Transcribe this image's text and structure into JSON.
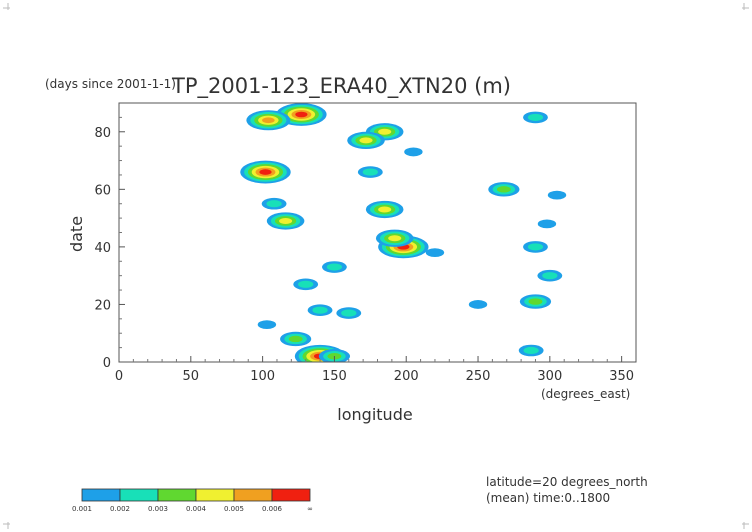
{
  "chart_data": {
    "type": "heatmap",
    "title": "TP_2001-123_ERA40_XTN20 (m)",
    "y_unit_note": "(days since 2001-1-1)",
    "xlabel": "longitude",
    "x_unit": "(degrees_east)",
    "ylabel": "date",
    "xlim": [
      0,
      360
    ],
    "ylim": [
      0,
      90
    ],
    "x_ticks": [
      0,
      50,
      100,
      150,
      200,
      250,
      300,
      350
    ],
    "y_ticks": [
      0,
      20,
      40,
      60,
      80
    ],
    "annotations": [
      "latitude=20 degrees_north",
      "(mean) time:0..1800"
    ],
    "colorbar": {
      "levels": [
        "0.001",
        "0.002",
        "0.003",
        "0.004",
        "0.005",
        "0.006",
        "∞"
      ],
      "colors": [
        "#1ea0e8",
        "#18e0b8",
        "#60d830",
        "#f0f030",
        "#f0a020",
        "#f02010"
      ]
    },
    "blobs": [
      {
        "x": 140,
        "y": 2,
        "peak": 6
      },
      {
        "x": 150,
        "y": 2,
        "peak": 3
      },
      {
        "x": 127,
        "y": 86,
        "peak": 6
      },
      {
        "x": 104,
        "y": 84,
        "peak": 5
      },
      {
        "x": 102,
        "y": 66,
        "peak": 6
      },
      {
        "x": 185,
        "y": 80,
        "peak": 4
      },
      {
        "x": 172,
        "y": 77,
        "peak": 4
      },
      {
        "x": 198,
        "y": 40,
        "peak": 6
      },
      {
        "x": 192,
        "y": 43,
        "peak": 4
      },
      {
        "x": 185,
        "y": 53,
        "peak": 4
      },
      {
        "x": 290,
        "y": 85,
        "peak": 2
      },
      {
        "x": 287,
        "y": 4,
        "peak": 2
      },
      {
        "x": 290,
        "y": 21,
        "peak": 3
      },
      {
        "x": 123,
        "y": 8,
        "peak": 3
      },
      {
        "x": 116,
        "y": 49,
        "peak": 4
      },
      {
        "x": 108,
        "y": 55,
        "peak": 2
      },
      {
        "x": 268,
        "y": 60,
        "peak": 3
      },
      {
        "x": 290,
        "y": 40,
        "peak": 2
      },
      {
        "x": 300,
        "y": 30,
        "peak": 2
      },
      {
        "x": 150,
        "y": 33,
        "peak": 2
      },
      {
        "x": 140,
        "y": 18,
        "peak": 2
      },
      {
        "x": 175,
        "y": 66,
        "peak": 2
      },
      {
        "x": 130,
        "y": 27,
        "peak": 2
      },
      {
        "x": 160,
        "y": 17,
        "peak": 2
      },
      {
        "x": 103,
        "y": 13,
        "peak": 1
      },
      {
        "x": 220,
        "y": 38,
        "peak": 1
      },
      {
        "x": 205,
        "y": 73,
        "peak": 1
      },
      {
        "x": 298,
        "y": 48,
        "peak": 1
      },
      {
        "x": 305,
        "y": 58,
        "peak": 1
      },
      {
        "x": 250,
        "y": 20,
        "peak": 1
      }
    ]
  }
}
